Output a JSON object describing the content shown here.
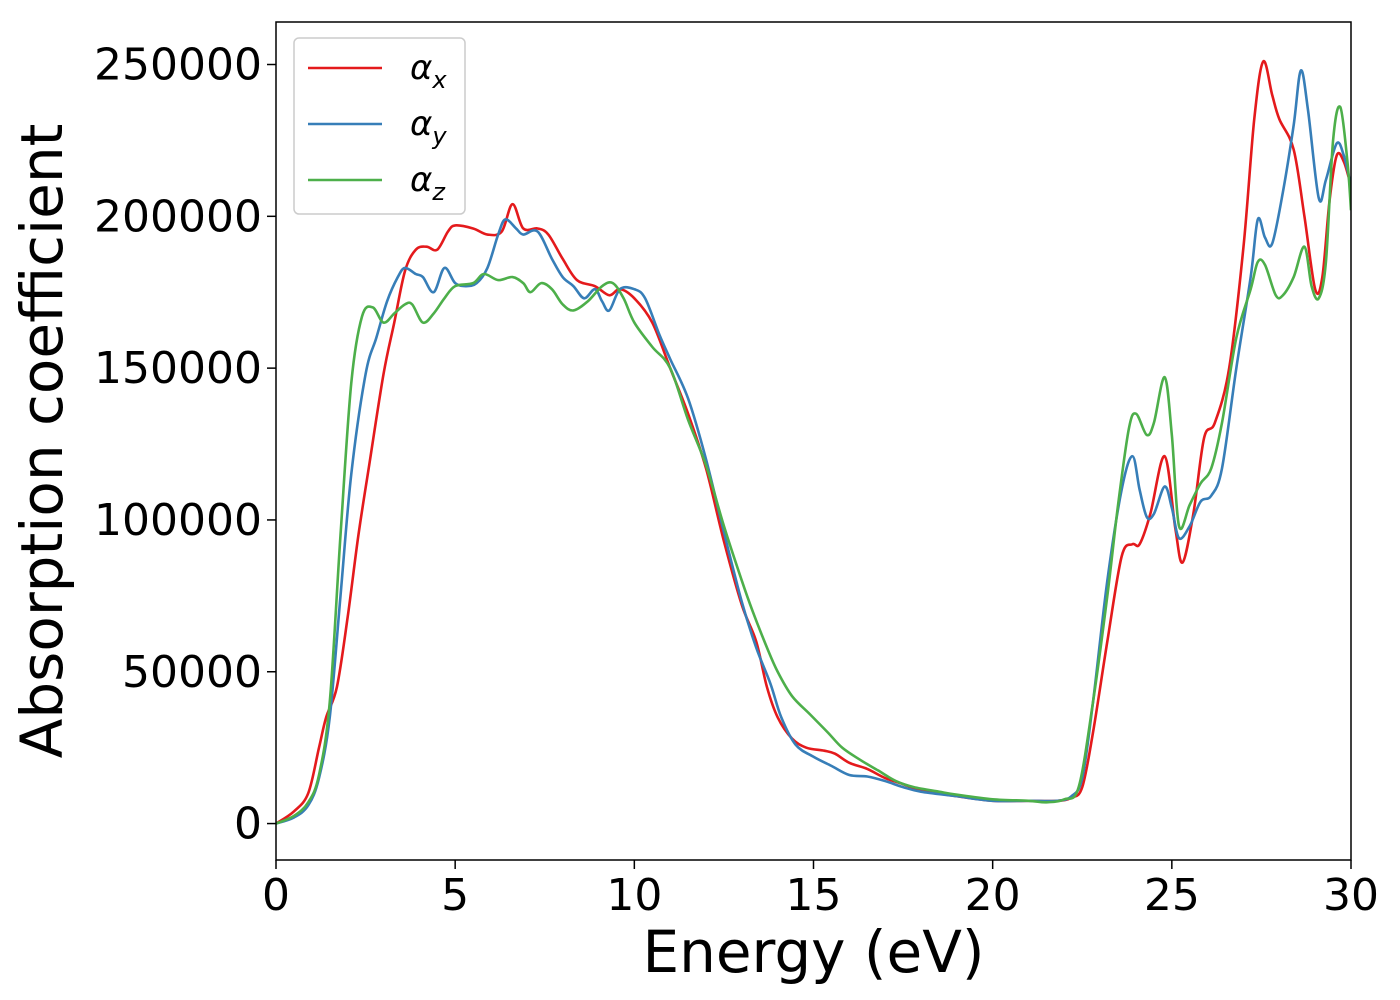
{
  "chart_data": {
    "type": "line",
    "xlabel": "Energy (eV)",
    "ylabel": "Absorption coefficient",
    "xlim": [
      0,
      30
    ],
    "ylim": [
      -12000,
      264000
    ],
    "xticks": [
      0,
      5,
      10,
      15,
      20,
      25,
      30
    ],
    "yticks": [
      0,
      50000,
      100000,
      150000,
      200000,
      250000
    ],
    "grid": false,
    "legend_position": "top-left",
    "series": [
      {
        "name": "α",
        "sub": "x",
        "color": "#e41a1c",
        "points": [
          [
            0,
            0
          ],
          [
            0.5,
            4000
          ],
          [
            0.9,
            10000
          ],
          [
            1.2,
            25000
          ],
          [
            1.4,
            35000
          ],
          [
            1.7,
            45000
          ],
          [
            2.0,
            68000
          ],
          [
            2.3,
            95000
          ],
          [
            2.6,
            118000
          ],
          [
            3.0,
            148000
          ],
          [
            3.3,
            165000
          ],
          [
            3.6,
            182000
          ],
          [
            3.9,
            189000
          ],
          [
            4.2,
            190000
          ],
          [
            4.5,
            189000
          ],
          [
            4.8,
            195000
          ],
          [
            5.0,
            197000
          ],
          [
            5.5,
            196000
          ],
          [
            5.9,
            194000
          ],
          [
            6.3,
            195000
          ],
          [
            6.6,
            204000
          ],
          [
            6.9,
            196000
          ],
          [
            7.3,
            196000
          ],
          [
            7.6,
            194000
          ],
          [
            8.0,
            186000
          ],
          [
            8.4,
            179000
          ],
          [
            8.9,
            177000
          ],
          [
            9.3,
            174000
          ],
          [
            9.6,
            176000
          ],
          [
            10.0,
            173000
          ],
          [
            10.5,
            165000
          ],
          [
            11.0,
            150000
          ],
          [
            11.5,
            135000
          ],
          [
            12.0,
            117000
          ],
          [
            12.5,
            93000
          ],
          [
            13.0,
            72000
          ],
          [
            13.4,
            60000
          ],
          [
            13.7,
            45000
          ],
          [
            14.0,
            35000
          ],
          [
            14.4,
            28000
          ],
          [
            14.8,
            25000
          ],
          [
            15.3,
            24000
          ],
          [
            15.6,
            23000
          ],
          [
            16.0,
            20000
          ],
          [
            16.5,
            18000
          ],
          [
            17.0,
            15000
          ],
          [
            17.5,
            13000
          ],
          [
            18.0,
            11000
          ],
          [
            19.0,
            9000
          ],
          [
            20.0,
            7500
          ],
          [
            21.0,
            7500
          ],
          [
            21.8,
            7500
          ],
          [
            22.2,
            8500
          ],
          [
            22.5,
            12000
          ],
          [
            22.8,
            30000
          ],
          [
            23.2,
            60000
          ],
          [
            23.6,
            88000
          ],
          [
            23.9,
            92000
          ],
          [
            24.1,
            92000
          ],
          [
            24.4,
            102000
          ],
          [
            24.8,
            121000
          ],
          [
            25.1,
            97000
          ],
          [
            25.3,
            86000
          ],
          [
            25.6,
            102000
          ],
          [
            25.9,
            127000
          ],
          [
            26.2,
            132000
          ],
          [
            26.6,
            150000
          ],
          [
            27.0,
            190000
          ],
          [
            27.3,
            232000
          ],
          [
            27.55,
            251000
          ],
          [
            27.8,
            240000
          ],
          [
            28.0,
            232000
          ],
          [
            28.4,
            222000
          ],
          [
            28.7,
            200000
          ],
          [
            29.0,
            176000
          ],
          [
            29.2,
            180000
          ],
          [
            29.4,
            205000
          ],
          [
            29.6,
            220000
          ],
          [
            29.8,
            218000
          ],
          [
            30.0,
            210000
          ]
        ]
      },
      {
        "name": "α",
        "sub": "y",
        "color": "#377eb8",
        "points": [
          [
            0,
            0
          ],
          [
            0.5,
            2000
          ],
          [
            0.9,
            6000
          ],
          [
            1.2,
            15000
          ],
          [
            1.5,
            35000
          ],
          [
            1.8,
            75000
          ],
          [
            2.1,
            115000
          ],
          [
            2.5,
            148000
          ],
          [
            2.8,
            160000
          ],
          [
            3.1,
            172000
          ],
          [
            3.4,
            180000
          ],
          [
            3.6,
            183000
          ],
          [
            3.9,
            181000
          ],
          [
            4.1,
            180000
          ],
          [
            4.4,
            175000
          ],
          [
            4.7,
            183000
          ],
          [
            5.0,
            178000
          ],
          [
            5.3,
            177000
          ],
          [
            5.6,
            178000
          ],
          [
            5.9,
            183000
          ],
          [
            6.2,
            194000
          ],
          [
            6.4,
            199000
          ],
          [
            6.7,
            196000
          ],
          [
            6.9,
            194000
          ],
          [
            7.3,
            195000
          ],
          [
            7.7,
            186000
          ],
          [
            8.0,
            180000
          ],
          [
            8.3,
            177000
          ],
          [
            8.6,
            173000
          ],
          [
            8.9,
            176000
          ],
          [
            9.1,
            172000
          ],
          [
            9.3,
            169000
          ],
          [
            9.6,
            176000
          ],
          [
            10.0,
            176000
          ],
          [
            10.3,
            173000
          ],
          [
            10.7,
            161000
          ],
          [
            11.0,
            153000
          ],
          [
            11.5,
            140000
          ],
          [
            12.0,
            120000
          ],
          [
            12.5,
            96000
          ],
          [
            13.0,
            73000
          ],
          [
            13.4,
            58000
          ],
          [
            13.8,
            46000
          ],
          [
            14.1,
            35000
          ],
          [
            14.5,
            26000
          ],
          [
            15.0,
            22000
          ],
          [
            15.5,
            19000
          ],
          [
            16.0,
            16000
          ],
          [
            16.5,
            15500
          ],
          [
            17.0,
            14000
          ],
          [
            17.5,
            12000
          ],
          [
            18.0,
            10500
          ],
          [
            19.0,
            9000
          ],
          [
            20.0,
            7500
          ],
          [
            21.0,
            7500
          ],
          [
            21.8,
            7500
          ],
          [
            22.2,
            9000
          ],
          [
            22.5,
            15000
          ],
          [
            22.8,
            40000
          ],
          [
            23.2,
            80000
          ],
          [
            23.6,
            110000
          ],
          [
            23.9,
            121000
          ],
          [
            24.1,
            110000
          ],
          [
            24.3,
            101000
          ],
          [
            24.5,
            102000
          ],
          [
            24.8,
            111000
          ],
          [
            25.0,
            104000
          ],
          [
            25.2,
            94000
          ],
          [
            25.5,
            98000
          ],
          [
            25.8,
            106000
          ],
          [
            26.1,
            108000
          ],
          [
            26.4,
            117000
          ],
          [
            26.8,
            150000
          ],
          [
            27.2,
            180000
          ],
          [
            27.4,
            199000
          ],
          [
            27.6,
            193000
          ],
          [
            27.8,
            191000
          ],
          [
            28.1,
            208000
          ],
          [
            28.4,
            230000
          ],
          [
            28.6,
            248000
          ],
          [
            28.8,
            235000
          ],
          [
            29.1,
            206000
          ],
          [
            29.3,
            212000
          ],
          [
            29.6,
            224000
          ],
          [
            29.8,
            220000
          ],
          [
            30.0,
            210000
          ]
        ]
      },
      {
        "name": "α",
        "sub": "z",
        "color": "#4daf4a",
        "points": [
          [
            0,
            0
          ],
          [
            0.5,
            2500
          ],
          [
            0.9,
            7000
          ],
          [
            1.2,
            16000
          ],
          [
            1.5,
            40000
          ],
          [
            1.8,
            95000
          ],
          [
            2.1,
            145000
          ],
          [
            2.4,
            167000
          ],
          [
            2.7,
            170000
          ],
          [
            3.0,
            165000
          ],
          [
            3.3,
            168000
          ],
          [
            3.6,
            171000
          ],
          [
            3.8,
            171000
          ],
          [
            4.1,
            165000
          ],
          [
            4.4,
            168000
          ],
          [
            4.7,
            173000
          ],
          [
            5.0,
            177000
          ],
          [
            5.5,
            178000
          ],
          [
            5.8,
            181000
          ],
          [
            6.2,
            179000
          ],
          [
            6.6,
            180000
          ],
          [
            6.9,
            178000
          ],
          [
            7.1,
            175000
          ],
          [
            7.4,
            178000
          ],
          [
            7.7,
            176000
          ],
          [
            8.0,
            171000
          ],
          [
            8.3,
            169000
          ],
          [
            8.7,
            172000
          ],
          [
            9.1,
            177000
          ],
          [
            9.4,
            178000
          ],
          [
            9.7,
            173000
          ],
          [
            10.0,
            165000
          ],
          [
            10.5,
            157000
          ],
          [
            11.0,
            150000
          ],
          [
            11.5,
            133000
          ],
          [
            12.0,
            118000
          ],
          [
            12.5,
            98000
          ],
          [
            13.0,
            80000
          ],
          [
            13.3,
            70000
          ],
          [
            13.7,
            58000
          ],
          [
            14.0,
            50000
          ],
          [
            14.4,
            42000
          ],
          [
            14.9,
            36000
          ],
          [
            15.4,
            30000
          ],
          [
            15.8,
            25000
          ],
          [
            16.3,
            21000
          ],
          [
            16.8,
            17500
          ],
          [
            17.3,
            14000
          ],
          [
            17.8,
            12000
          ],
          [
            18.5,
            10500
          ],
          [
            19.0,
            9500
          ],
          [
            20.0,
            8000
          ],
          [
            21.0,
            7500
          ],
          [
            21.5,
            7000
          ],
          [
            22.0,
            8000
          ],
          [
            22.4,
            12000
          ],
          [
            22.8,
            40000
          ],
          [
            23.2,
            75000
          ],
          [
            23.5,
            105000
          ],
          [
            23.8,
            130000
          ],
          [
            24.0,
            135000
          ],
          [
            24.3,
            128000
          ],
          [
            24.5,
            132000
          ],
          [
            24.8,
            147000
          ],
          [
            25.0,
            128000
          ],
          [
            25.2,
            98000
          ],
          [
            25.5,
            105000
          ],
          [
            25.8,
            112000
          ],
          [
            26.1,
            117000
          ],
          [
            26.4,
            132000
          ],
          [
            26.8,
            160000
          ],
          [
            27.2,
            176000
          ],
          [
            27.4,
            185000
          ],
          [
            27.6,
            184000
          ],
          [
            27.9,
            174000
          ],
          [
            28.1,
            174000
          ],
          [
            28.4,
            180000
          ],
          [
            28.7,
            190000
          ],
          [
            28.9,
            177000
          ],
          [
            29.1,
            173000
          ],
          [
            29.3,
            185000
          ],
          [
            29.5,
            225000
          ],
          [
            29.7,
            236000
          ],
          [
            29.9,
            218000
          ],
          [
            30.0,
            202000
          ]
        ]
      }
    ]
  }
}
